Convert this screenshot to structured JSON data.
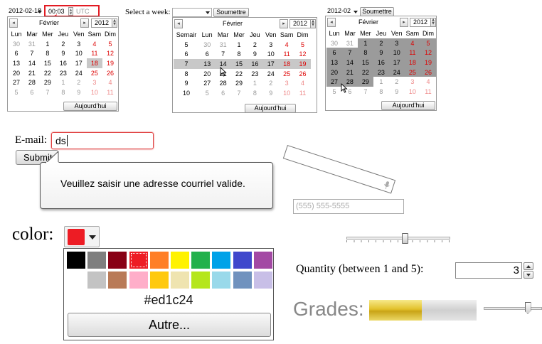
{
  "datetime_widget": {
    "date_value": "2012-02-18",
    "time_value": "00:03",
    "timezone": "UTC",
    "month": "Février",
    "year": "2012",
    "weekday_headers": [
      "Lun",
      "Mar",
      "Mer",
      "Jeu",
      "Ven",
      "Sam",
      "Dim"
    ],
    "weeks": [
      [
        "30",
        "31",
        "1",
        "2",
        "3",
        "4",
        "5"
      ],
      [
        "6",
        "7",
        "8",
        "9",
        "10",
        "11",
        "12"
      ],
      [
        "13",
        "14",
        "15",
        "16",
        "17",
        "18",
        "19"
      ],
      [
        "20",
        "21",
        "22",
        "23",
        "24",
        "25",
        "26"
      ],
      [
        "27",
        "28",
        "29",
        "1",
        "2",
        "3",
        "4"
      ],
      [
        "5",
        "6",
        "7",
        "8",
        "9",
        "10",
        "11"
      ]
    ],
    "today_label": "Aujourd'hui"
  },
  "week_widget": {
    "label": "Select a week:",
    "submit_label": "Soumettre",
    "month": "Février",
    "year": "2012",
    "week_header": "Semair",
    "weekday_headers": [
      "Lun",
      "Mar",
      "Mer",
      "Jeu",
      "Ven",
      "Sam",
      "Dim"
    ],
    "week_numbers": [
      "5",
      "6",
      "7",
      "8",
      "9",
      "10"
    ],
    "weeks": [
      [
        "30",
        "31",
        "1",
        "2",
        "3",
        "4",
        "5"
      ],
      [
        "6",
        "7",
        "8",
        "9",
        "10",
        "11",
        "12"
      ],
      [
        "13",
        "14",
        "15",
        "16",
        "17",
        "18",
        "19"
      ],
      [
        "20",
        "21",
        "22",
        "23",
        "24",
        "25",
        "26"
      ],
      [
        "27",
        "28",
        "29",
        "1",
        "2",
        "3",
        "4"
      ],
      [
        "5",
        "6",
        "7",
        "8",
        "9",
        "10",
        "11"
      ]
    ],
    "today_label": "Aujourd'hui"
  },
  "month_widget": {
    "value": "2012-02",
    "submit_label": "Soumettre",
    "month": "Février",
    "year": "2012",
    "weekday_headers": [
      "Lun",
      "Mar",
      "Mer",
      "Jeu",
      "Ven",
      "Sam",
      "Dim"
    ],
    "weeks": [
      [
        "30",
        "31",
        "1",
        "2",
        "3",
        "4",
        "5"
      ],
      [
        "6",
        "7",
        "8",
        "9",
        "10",
        "11",
        "12"
      ],
      [
        "13",
        "14",
        "15",
        "16",
        "17",
        "18",
        "19"
      ],
      [
        "20",
        "21",
        "22",
        "23",
        "24",
        "25",
        "26"
      ],
      [
        "27",
        "28",
        "29",
        "1",
        "2",
        "3",
        "4"
      ],
      [
        "5",
        "6",
        "7",
        "8",
        "9",
        "10",
        "11"
      ]
    ],
    "today_label": "Aujourd'hui"
  },
  "email_form": {
    "label": "E-mail:",
    "value": "ds",
    "submit_label": "Submit",
    "tooltip": "Veuillez saisir une adresse courriel valide."
  },
  "phone_field": {
    "placeholder": "(555) 555-5555"
  },
  "color_picker": {
    "label": "color:",
    "selected_color": "#ed1c24",
    "hex_text": "#ed1c24",
    "more_label": "Autre...",
    "palette_row1": [
      "#000000",
      "#7f7f7f",
      "#880015",
      "#ed1c24",
      "#ff7f27",
      "#fff200",
      "#22b14c",
      "#00a2e8",
      "#3f48cc",
      "#a349a4"
    ],
    "palette_row2": [
      "#ffffff",
      "#c3c3c3",
      "#b97a57",
      "#ffaec9",
      "#ffc90e",
      "#efe4b0",
      "#b5e61d",
      "#99d9ea",
      "#7092be",
      "#c8bfe7"
    ]
  },
  "quantity": {
    "label": "Quantity (between 1 and 5):",
    "value": "3"
  },
  "grades": {
    "label": "Grades:",
    "meter_fraction": 0.49,
    "slider_fraction": 0.75
  },
  "range_slider": {
    "fraction": 0.56
  }
}
